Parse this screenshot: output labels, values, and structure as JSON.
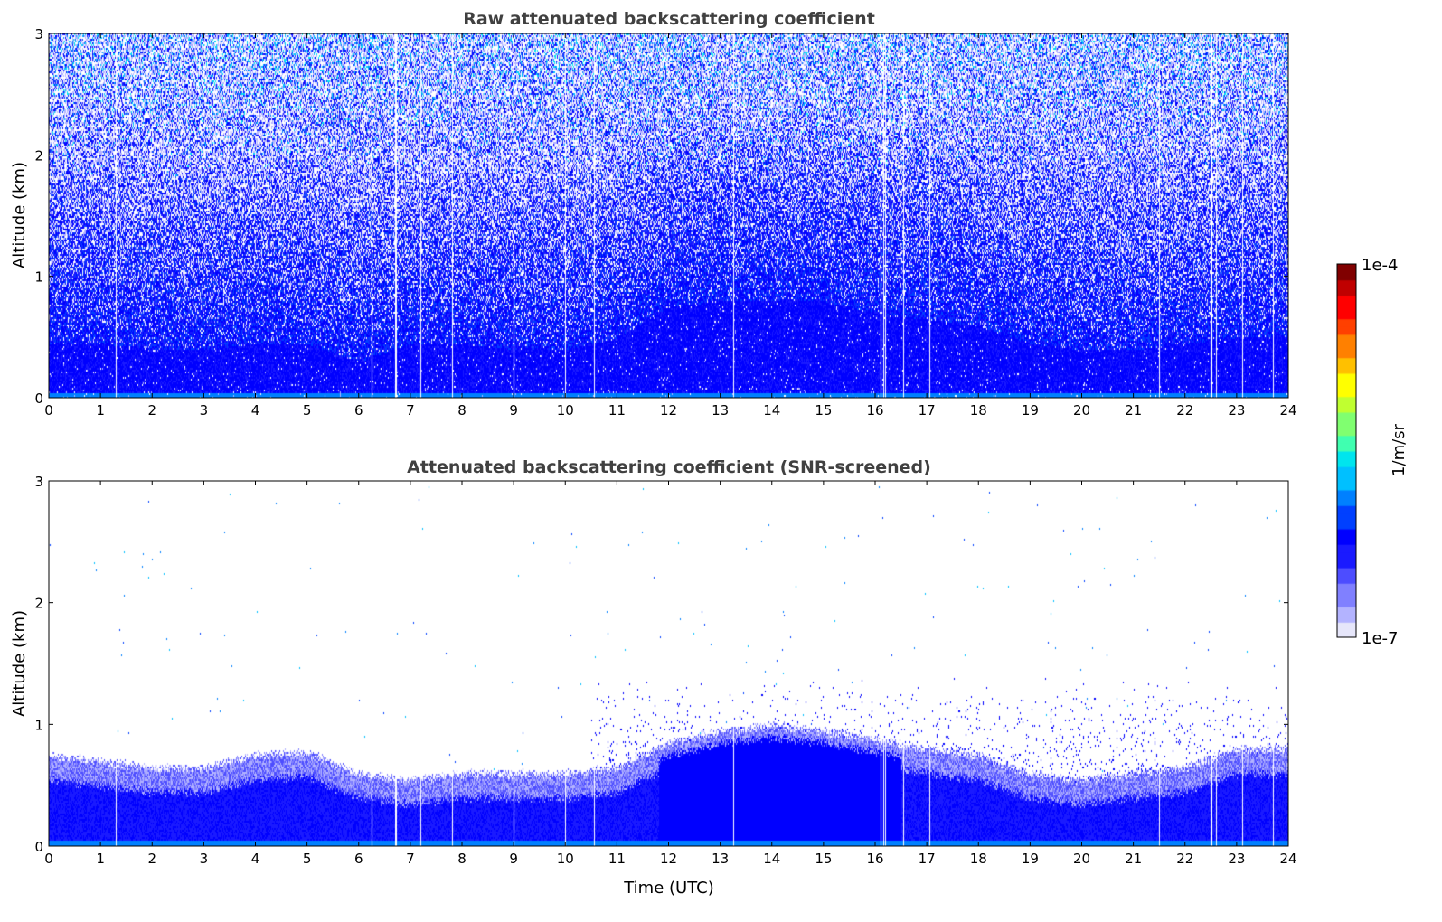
{
  "chart_data": [
    {
      "type": "heatmap",
      "title": "Raw attenuated backscattering coefficient",
      "xlabel": "",
      "ylabel": "Altitude (km)",
      "xlim": [
        0,
        24
      ],
      "ylim": [
        0,
        3
      ],
      "xticks": [
        "0",
        "1",
        "2",
        "3",
        "4",
        "5",
        "6",
        "7",
        "8",
        "9",
        "10",
        "11",
        "12",
        "13",
        "14",
        "15",
        "16",
        "17",
        "18",
        "19",
        "20",
        "21",
        "22",
        "23",
        "24"
      ],
      "yticks": [
        "0",
        "1",
        "2",
        "3"
      ],
      "description_values": {
        "data_gap_times_utc": [
          1.3,
          6.25,
          6.7,
          7.2,
          7.8,
          9.0,
          10.0,
          10.55,
          13.25,
          16.1,
          16.15,
          16.2,
          16.55,
          17.05,
          21.5,
          22.5,
          22.6,
          23.1,
          23.7
        ],
        "dense_layer_top_km_hourly": [
          0.45,
          0.45,
          0.4,
          0.4,
          0.45,
          0.45,
          0.3,
          0.45,
          0.45,
          0.4,
          0.4,
          0.5,
          0.75,
          0.8,
          0.8,
          0.8,
          0.7,
          0.65,
          0.6,
          0.45,
          0.4,
          0.4,
          0.45,
          0.5,
          0.5
        ]
      }
    },
    {
      "type": "heatmap",
      "title": "Attenuated backscattering coefficient (SNR-screened)",
      "xlabel": "Time (UTC)",
      "ylabel": "Altitude (km)",
      "xlim": [
        0,
        24
      ],
      "ylim": [
        0,
        3
      ],
      "xticks": [
        "0",
        "1",
        "2",
        "3",
        "4",
        "5",
        "6",
        "7",
        "8",
        "9",
        "10",
        "11",
        "12",
        "13",
        "14",
        "15",
        "16",
        "17",
        "18",
        "19",
        "20",
        "21",
        "22",
        "23",
        "24"
      ],
      "yticks": [
        "0",
        "1",
        "2",
        "3"
      ],
      "description_values": {
        "boundary_layer_top_km_hourly": [
          0.75,
          0.7,
          0.65,
          0.65,
          0.75,
          0.78,
          0.6,
          0.55,
          0.6,
          0.6,
          0.6,
          0.65,
          0.85,
          0.95,
          1.0,
          0.95,
          0.88,
          0.8,
          0.75,
          0.6,
          0.55,
          0.6,
          0.65,
          0.8,
          0.8
        ]
      }
    }
  ],
  "colorbar": {
    "label": "1/m/sr",
    "min_label": "1e-7",
    "max_label": "1e-4",
    "colormap": "white-blue-jet",
    "colors": [
      "#e6e6fa",
      "#b3b3ff",
      "#8080ff",
      "#4d4dff",
      "#1a1aff",
      "#0000ff",
      "#0040ff",
      "#0080ff",
      "#00c0ff",
      "#00e5ee",
      "#40ffb0",
      "#80ff70",
      "#c0ff30",
      "#ffff00",
      "#ffc000",
      "#ff8000",
      "#ff4000",
      "#ff0000",
      "#c00000",
      "#800000"
    ]
  }
}
